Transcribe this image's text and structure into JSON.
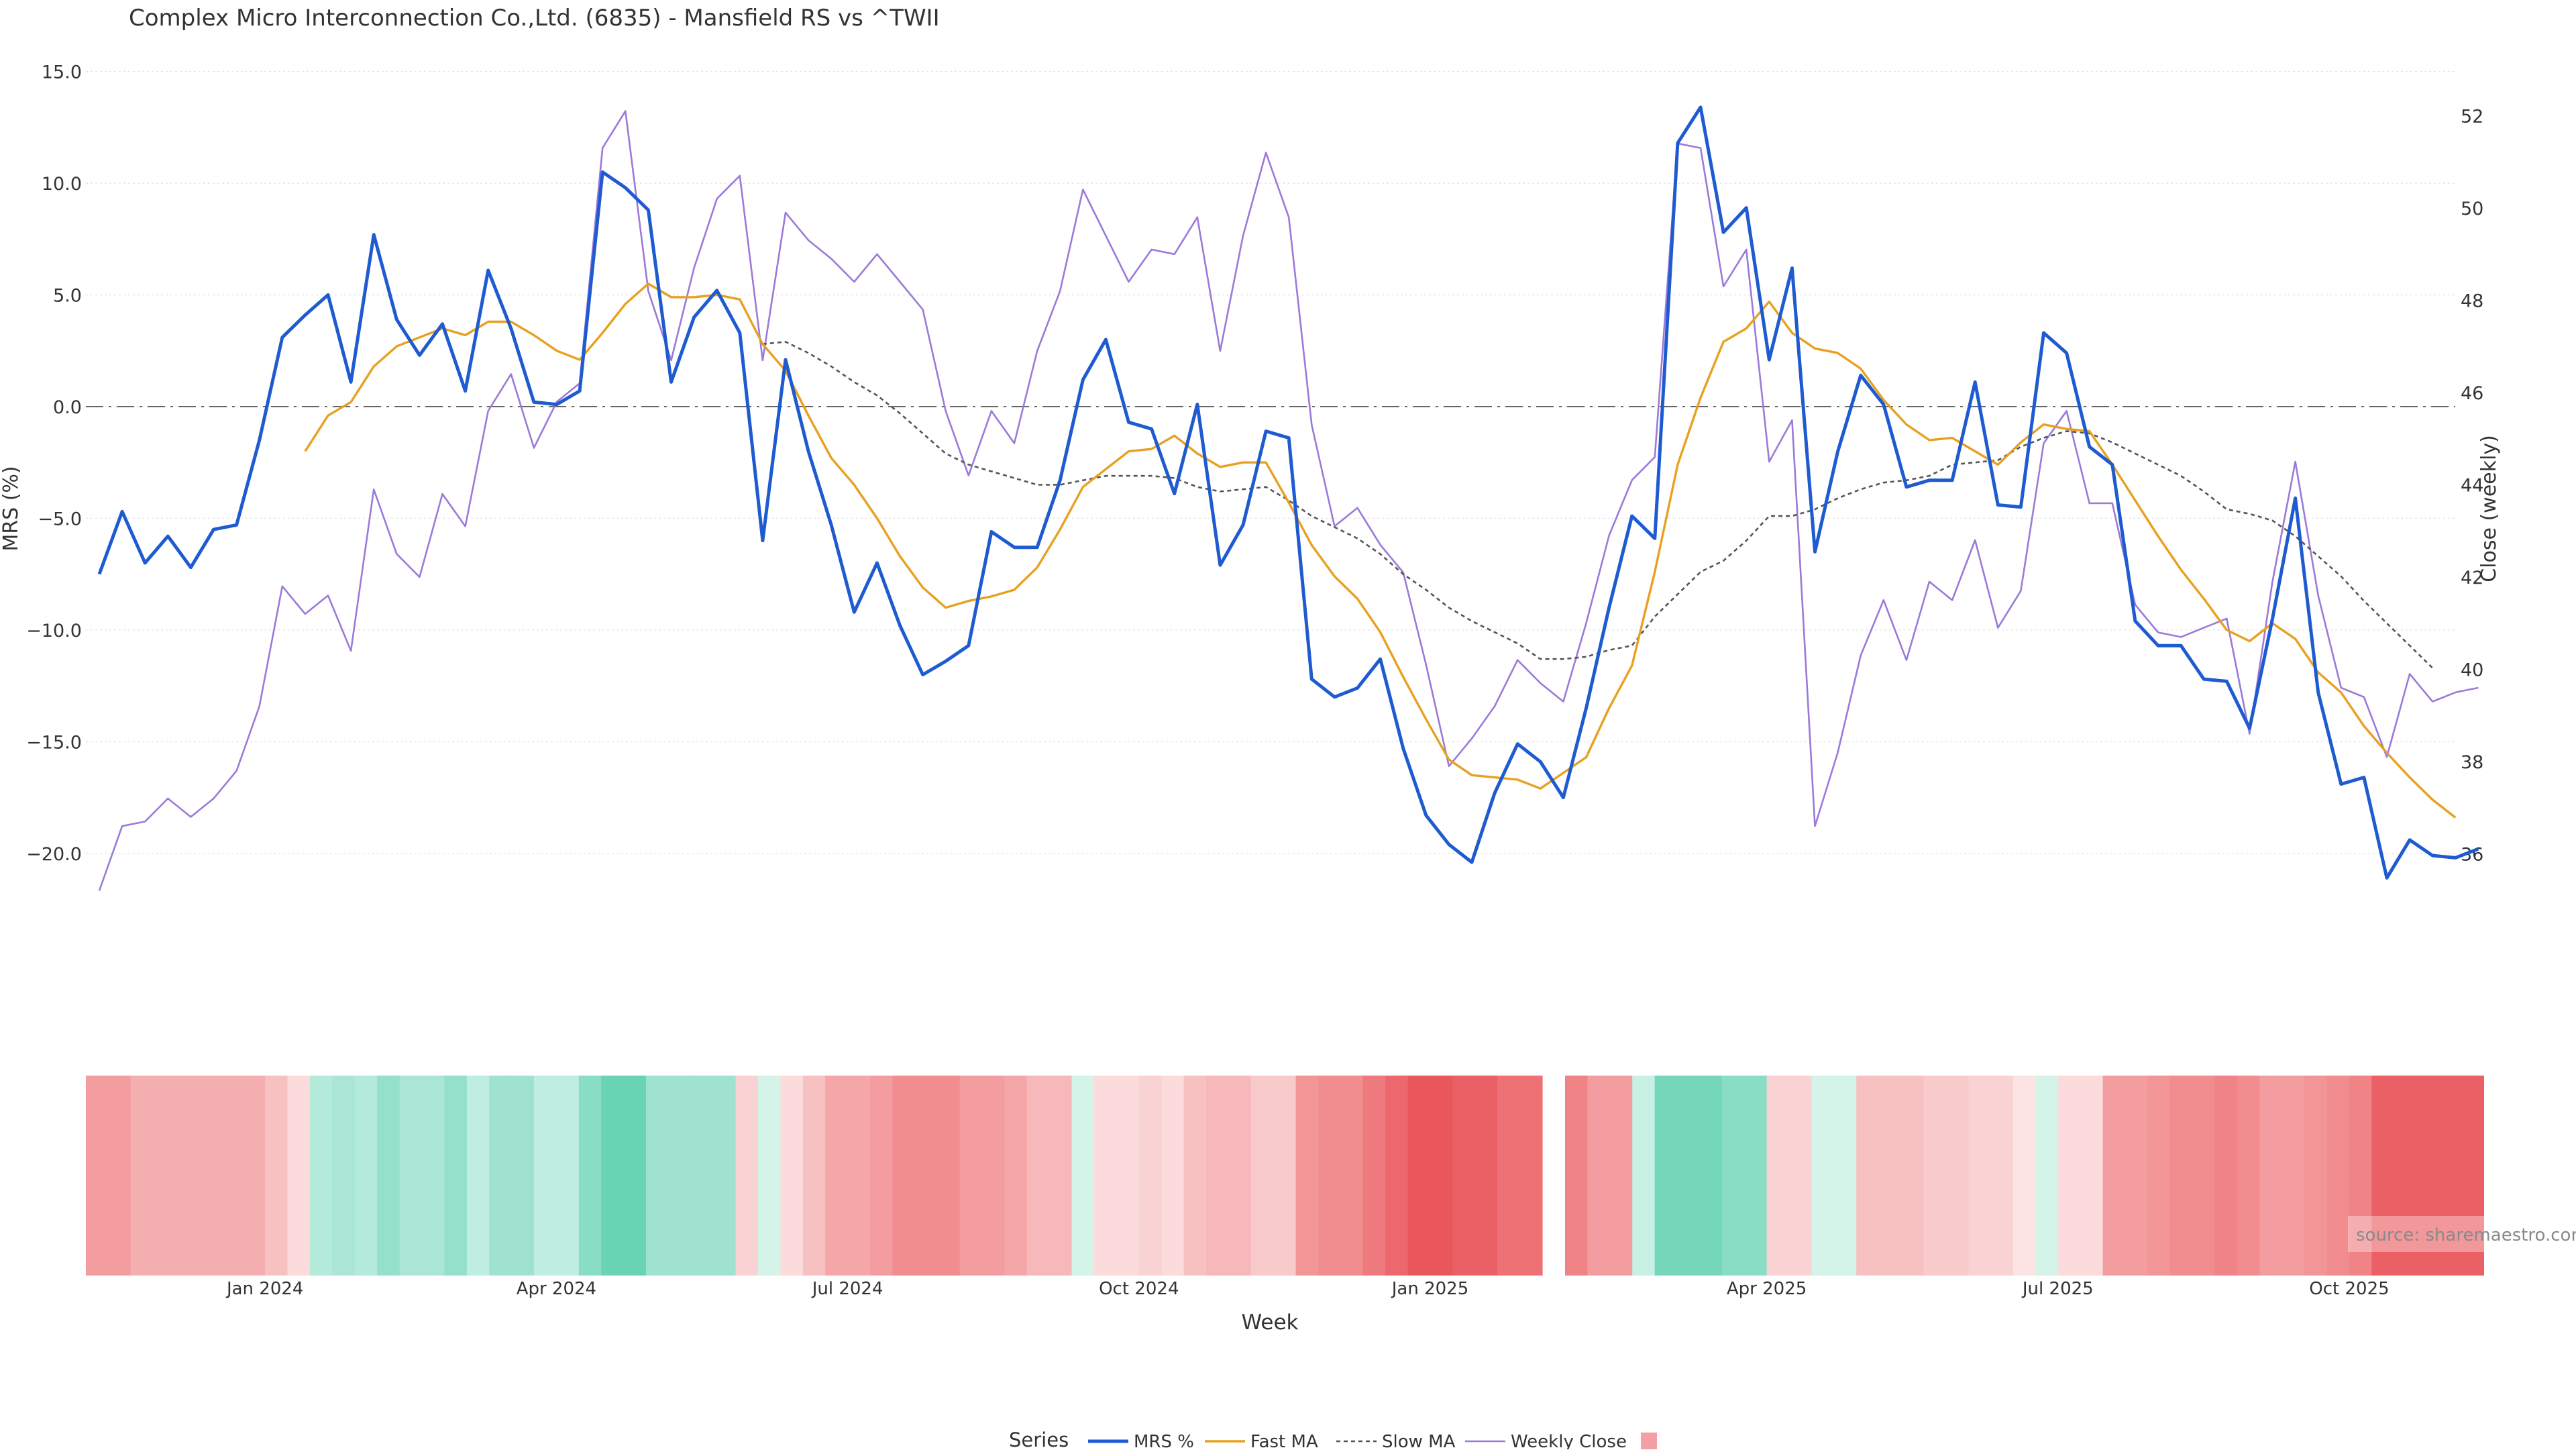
{
  "chart_data": {
    "type": "line",
    "title": "Complex Micro Interconnection Co.,Ltd. (6835) - Mansfield RS vs ^TWII",
    "xlabel": "Week",
    "ylabel_left": "MRS (%)",
    "ylabel_right": "Close (weekly)",
    "ylim_left": [
      -22.5,
      15.5
    ],
    "ylim_right": [
      34.8,
      53.2
    ],
    "yticks_left": [
      "15.0",
      "10.0",
      "5.0",
      "0.0",
      "−5.0",
      "−10.0",
      "−15.0",
      "−20.0"
    ],
    "yticks_right": [
      "52",
      "50",
      "48",
      "46",
      "44",
      "42",
      "40",
      "38",
      "36"
    ],
    "xticks": [
      "Jan 2024",
      "Apr 2024",
      "Jul 2024",
      "Oct 2024",
      "Jan 2025",
      "Apr 2025",
      "Jul 2025",
      "Oct 2025"
    ],
    "xtick_weeks": [
      8,
      21,
      34,
      47,
      60,
      74,
      87,
      100
    ],
    "zero_line": true,
    "grid": true,
    "source_note": "source: sharemaestro.com",
    "legend": {
      "title": "Series",
      "position": "bottom-center",
      "items": [
        "MRS %",
        "Fast MA",
        "Slow MA",
        "Weekly Close",
        ""
      ]
    },
    "colors": {
      "mrs": "#1f5bd0",
      "fast": "#e8a020",
      "slow": "#555555",
      "close": "#9b7ad8",
      "heat_pos": "#1fbf8f",
      "heat_neg": "#e8454a",
      "legend_swatch": "#f4a0a3"
    },
    "series": [
      {
        "name": "MRS %",
        "axis": "left",
        "start_week": 0,
        "values": [
          -7.5,
          -4.7,
          -7.0,
          -5.8,
          -7.2,
          -5.5,
          -5.3,
          -1.5,
          3.1,
          4.1,
          5.0,
          1.1,
          7.7,
          3.9,
          2.3,
          3.7,
          0.7,
          6.1,
          3.5,
          0.2,
          0.1,
          0.7,
          10.5,
          9.8,
          8.8,
          1.1,
          4.0,
          5.2,
          3.3,
          -6.0,
          2.1,
          -2.0,
          -5.3,
          -9.2,
          -7.0,
          -9.8,
          -12.0,
          -11.4,
          -10.7,
          -5.6,
          -6.3,
          -6.3,
          -3.3,
          1.2,
          3.0,
          -0.7,
          -1.0,
          -3.9,
          0.1,
          -7.1,
          -5.3,
          -1.1,
          -1.4,
          -12.2,
          -13.0,
          -12.6,
          -11.3,
          -15.3,
          -18.3,
          -19.6,
          -20.4,
          -17.3,
          -15.1,
          -15.9,
          -17.5,
          -13.5,
          -9.0,
          -4.9,
          -5.9,
          11.8,
          13.4,
          7.8,
          8.9,
          2.1,
          6.2,
          -6.5,
          -2.0,
          1.4,
          0.1,
          -3.6,
          -3.3,
          -3.3,
          1.1,
          -4.4,
          -4.5,
          3.3,
          2.4,
          -1.8,
          -2.6,
          -9.6,
          -10.7,
          -10.7,
          -12.2,
          -12.3,
          -14.4,
          -9.5,
          -4.1,
          -12.8,
          -16.9,
          -16.6,
          -21.1,
          -19.4,
          -20.1,
          -20.2,
          -19.8
        ]
      },
      {
        "name": "Fast MA",
        "axis": "left",
        "start_week": 9,
        "values": [
          -2.0,
          -0.4,
          0.2,
          1.8,
          2.7,
          3.1,
          3.5,
          3.2,
          3.8,
          3.8,
          3.2,
          2.5,
          2.1,
          3.3,
          4.6,
          5.5,
          4.9,
          4.9,
          5.0,
          4.8,
          2.8,
          1.6,
          -0.4,
          -2.3,
          -3.5,
          -5.0,
          -6.7,
          -8.1,
          -9.0,
          -8.7,
          -8.5,
          -8.2,
          -7.2,
          -5.5,
          -3.6,
          -2.8,
          -2.0,
          -1.9,
          -1.3,
          -2.1,
          -2.7,
          -2.5,
          -2.5,
          -4.3,
          -6.2,
          -7.6,
          -8.6,
          -10.1,
          -12.1,
          -14.0,
          -15.8,
          -16.5,
          -16.6,
          -16.7,
          -17.1,
          -16.4,
          -15.7,
          -13.5,
          -11.6,
          -7.4,
          -2.6,
          0.4,
          2.9,
          3.5,
          4.7,
          3.3,
          2.6,
          2.4,
          1.7,
          0.3,
          -0.8,
          -1.5,
          -1.4,
          -2.0,
          -2.6,
          -1.6,
          -0.8,
          -1.0,
          -1.1,
          -2.6,
          -4.2,
          -5.8,
          -7.3,
          -8.6,
          -10.0,
          -10.5,
          -9.7,
          -10.4,
          -11.9,
          -12.8,
          -14.3,
          -15.5,
          -16.6,
          -17.6,
          -18.4
        ]
      },
      {
        "name": "Slow MA",
        "axis": "left",
        "start_week": 29,
        "values": [
          2.8,
          2.9,
          2.4,
          1.8,
          1.1,
          0.5,
          -0.3,
          -1.2,
          -2.1,
          -2.6,
          -2.9,
          -3.2,
          -3.5,
          -3.5,
          -3.3,
          -3.1,
          -3.1,
          -3.1,
          -3.2,
          -3.6,
          -3.8,
          -3.7,
          -3.6,
          -4.2,
          -4.9,
          -5.4,
          -5.9,
          -6.6,
          -7.5,
          -8.2,
          -9.0,
          -9.6,
          -10.1,
          -10.6,
          -11.3,
          -11.3,
          -11.2,
          -10.9,
          -10.7,
          -9.4,
          -8.4,
          -7.4,
          -6.9,
          -6.0,
          -4.9,
          -4.9,
          -4.6,
          -4.1,
          -3.7,
          -3.4,
          -3.3,
          -3.1,
          -2.6,
          -2.5,
          -2.4,
          -1.8,
          -1.4,
          -1.1,
          -1.2,
          -1.6,
          -2.1,
          -2.6,
          -3.1,
          -3.8,
          -4.6,
          -4.8,
          -5.1,
          -5.8,
          -6.7,
          -7.6,
          -8.7,
          -9.7,
          -10.7,
          -11.7
        ]
      },
      {
        "name": "Weekly Close",
        "axis": "right",
        "start_week": 0,
        "values": [
          35.2,
          36.6,
          36.7,
          37.2,
          36.8,
          37.2,
          37.8,
          39.2,
          41.8,
          41.2,
          41.6,
          40.4,
          43.9,
          42.5,
          42.0,
          43.8,
          43.1,
          45.6,
          46.4,
          44.8,
          45.8,
          46.2,
          51.3,
          52.1,
          48.2,
          46.7,
          48.7,
          50.2,
          50.7,
          46.7,
          49.9,
          49.3,
          48.9,
          48.4,
          49.0,
          48.4,
          47.8,
          45.6,
          44.2,
          45.6,
          44.9,
          46.9,
          48.2,
          50.4,
          49.4,
          48.4,
          49.1,
          49.0,
          49.8,
          46.9,
          49.4,
          51.2,
          49.8,
          45.3,
          43.1,
          43.5,
          42.7,
          42.1,
          40.1,
          37.9,
          38.5,
          39.2,
          40.2,
          39.7,
          39.3,
          41.0,
          42.9,
          44.1,
          44.6,
          51.4,
          51.3,
          48.3,
          49.1,
          44.5,
          45.4,
          36.6,
          38.2,
          40.3,
          41.5,
          40.2,
          41.9,
          41.5,
          42.8,
          40.9,
          41.7,
          44.9,
          45.6,
          43.6,
          43.6,
          41.4,
          40.8,
          40.7,
          40.9,
          41.1,
          38.6,
          41.9,
          44.5,
          41.6,
          39.6,
          39.4,
          38.1,
          39.9,
          39.3,
          39.5,
          39.6
        ]
      }
    ],
    "heat_strip": {
      "start_week": 0,
      "gap_after_week": 64,
      "values": [
        -0.5,
        -0.5,
        -0.4,
        -0.4,
        -0.4,
        -0.4,
        -0.4,
        -0.4,
        -0.3,
        -0.15,
        0.3,
        0.35,
        0.3,
        0.45,
        0.35,
        0.35,
        0.45,
        0.25,
        0.4,
        0.4,
        0.25,
        0.25,
        0.5,
        0.65,
        0.65,
        0.4,
        0.4,
        0.4,
        0.4,
        -0.2,
        0.15,
        -0.15,
        -0.3,
        -0.45,
        -0.45,
        -0.5,
        -0.6,
        -0.6,
        -0.6,
        -0.5,
        -0.5,
        -0.45,
        -0.35,
        -0.35,
        0.15,
        -0.15,
        -0.15,
        -0.2,
        -0.15,
        -0.3,
        -0.35,
        -0.35,
        -0.25,
        -0.25,
        -0.55,
        -0.6,
        -0.6,
        -0.7,
        -0.8,
        -0.9,
        -0.9,
        -0.85,
        -0.85,
        -0.75,
        -0.75,
        -0.65,
        -0.5,
        -0.5,
        0.2,
        0.6,
        0.6,
        0.6,
        0.5,
        0.5,
        -0.2,
        -0.2,
        0.15,
        0.15,
        -0.3,
        -0.3,
        -0.3,
        -0.25,
        -0.25,
        -0.2,
        -0.2,
        -0.1,
        0.15,
        -0.15,
        -0.15,
        -0.5,
        -0.5,
        -0.55,
        -0.6,
        -0.6,
        -0.65,
        -0.6,
        -0.5,
        -0.5,
        -0.55,
        -0.6,
        -0.65,
        -0.85,
        -0.85,
        -0.85,
        -0.85,
        -0.85
      ]
    }
  }
}
